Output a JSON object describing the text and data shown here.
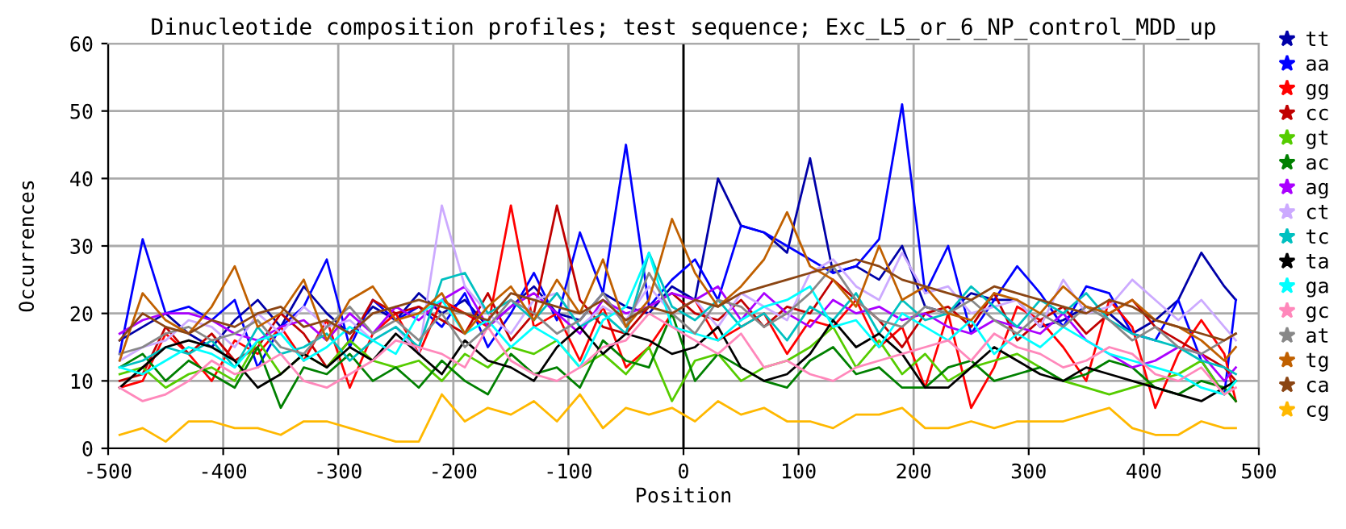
{
  "chart_data": {
    "type": "line",
    "title": "Dinucleotide composition profiles; test sequence; Exc_L5_or_6_NP_control_MDD_up",
    "xlabel": "Position",
    "ylabel": "Occurrences",
    "x": [
      -490,
      -470,
      -450,
      -430,
      -410,
      -390,
      -370,
      -350,
      -330,
      -310,
      -290,
      -270,
      -250,
      -230,
      -210,
      -190,
      -170,
      -150,
      -130,
      -110,
      -90,
      -70,
      -50,
      -30,
      -10,
      10,
      30,
      50,
      70,
      90,
      110,
      130,
      150,
      170,
      190,
      210,
      230,
      250,
      270,
      290,
      310,
      330,
      350,
      370,
      390,
      410,
      430,
      450,
      470,
      480
    ],
    "series": [
      {
        "name": "tt",
        "color": "#0000a8",
        "values": [
          16,
          18,
          20,
          17,
          15,
          19,
          22,
          18,
          24,
          20,
          17,
          21,
          19,
          23,
          20,
          22,
          18,
          21,
          24,
          20,
          19,
          23,
          21,
          20,
          24,
          22,
          40,
          33,
          32,
          29,
          43,
          26,
          27,
          25,
          30,
          21,
          20,
          23,
          22,
          22,
          18,
          19,
          21,
          20,
          17,
          19,
          22,
          29,
          24,
          22
        ]
      },
      {
        "name": "aa",
        "color": "#0000ff",
        "values": [
          14,
          31,
          20,
          21,
          19,
          22,
          12,
          18,
          21,
          28,
          15,
          22,
          19,
          21,
          18,
          23,
          15,
          20,
          26,
          19,
          32,
          23,
          45,
          21,
          25,
          28,
          22,
          33,
          32,
          30,
          28,
          26,
          27,
          31,
          51,
          23,
          30,
          17,
          22,
          27,
          23,
          18,
          24,
          23,
          17,
          16,
          22,
          13,
          8,
          22
        ]
      },
      {
        "name": "gg",
        "color": "#ff0000",
        "values": [
          9,
          10,
          17,
          14,
          10,
          16,
          14,
          18,
          13,
          19,
          9,
          17,
          20,
          14,
          22,
          20,
          18,
          36,
          18,
          20,
          13,
          21,
          12,
          15,
          20,
          22,
          16,
          18,
          20,
          14,
          19,
          18,
          22,
          15,
          18,
          9,
          20,
          6,
          12,
          21,
          19,
          15,
          10,
          22,
          18,
          6,
          14,
          19,
          14,
          7
        ]
      },
      {
        "name": "cc",
        "color": "#c00000",
        "values": [
          10,
          11,
          18,
          14,
          17,
          13,
          15,
          20,
          17,
          12,
          16,
          22,
          20,
          21,
          19,
          17,
          23,
          16,
          20,
          36,
          22,
          18,
          17,
          21,
          23,
          20,
          19,
          22,
          18,
          21,
          20,
          25,
          22,
          19,
          15,
          20,
          21,
          18,
          23,
          16,
          19,
          21,
          17,
          20,
          22,
          18,
          16,
          14,
          12,
          10
        ]
      },
      {
        "name": "gt",
        "color": "#55cc00",
        "values": [
          11,
          12,
          9,
          11,
          12,
          10,
          16,
          11,
          14,
          12,
          16,
          13,
          12,
          13,
          10,
          14,
          12,
          15,
          14,
          16,
          12,
          14,
          11,
          15,
          7,
          13,
          14,
          10,
          12,
          13,
          15,
          18,
          12,
          16,
          11,
          14,
          10,
          12,
          13,
          14,
          12,
          10,
          9,
          8,
          9,
          10,
          11,
          13,
          8,
          10
        ]
      },
      {
        "name": "ac",
        "color": "#008000",
        "values": [
          12,
          14,
          10,
          13,
          11,
          9,
          15,
          6,
          12,
          11,
          14,
          10,
          12,
          9,
          13,
          10,
          8,
          14,
          11,
          12,
          9,
          16,
          13,
          12,
          20,
          10,
          14,
          12,
          10,
          9,
          13,
          15,
          11,
          12,
          9,
          9,
          12,
          13,
          10,
          11,
          12,
          10,
          11,
          13,
          12,
          9,
          8,
          10,
          9,
          7
        ]
      },
      {
        "name": "ag",
        "color": "#aa00ff",
        "values": [
          17,
          19,
          20,
          20,
          19,
          17,
          16,
          18,
          19,
          16,
          20,
          17,
          21,
          19,
          22,
          24,
          18,
          21,
          23,
          20,
          17,
          22,
          20,
          21,
          23,
          22,
          24,
          19,
          23,
          20,
          18,
          22,
          20,
          21,
          19,
          20,
          18,
          17,
          19,
          18,
          17,
          20,
          16,
          14,
          12,
          13,
          15,
          14,
          10,
          12
        ]
      },
      {
        "name": "ct",
        "color": "#ccaaff",
        "values": [
          13,
          15,
          16,
          19,
          18,
          15,
          20,
          17,
          21,
          18,
          19,
          16,
          18,
          14,
          36,
          24,
          20,
          17,
          22,
          23,
          18,
          21,
          19,
          24,
          20,
          22,
          18,
          23,
          21,
          19,
          26,
          28,
          24,
          22,
          29,
          23,
          24,
          20,
          21,
          22,
          18,
          25,
          20,
          21,
          25,
          22,
          19,
          22,
          18,
          16
        ]
      },
      {
        "name": "tc",
        "color": "#00c0c0",
        "values": [
          12,
          13,
          15,
          14,
          16,
          12,
          18,
          14,
          15,
          17,
          13,
          16,
          18,
          15,
          25,
          26,
          20,
          22,
          19,
          23,
          18,
          20,
          17,
          29,
          21,
          19,
          22,
          18,
          20,
          16,
          21,
          19,
          23,
          17,
          22,
          19,
          20,
          24,
          21,
          18,
          22,
          20,
          23,
          19,
          17,
          16,
          15,
          13,
          12,
          11
        ]
      },
      {
        "name": "ta",
        "color": "#000000",
        "values": [
          9,
          12,
          15,
          16,
          15,
          13,
          9,
          11,
          14,
          12,
          15,
          13,
          17,
          14,
          11,
          16,
          13,
          12,
          10,
          15,
          18,
          14,
          17,
          16,
          14,
          15,
          18,
          12,
          10,
          11,
          14,
          19,
          15,
          17,
          14,
          9,
          9,
          12,
          15,
          13,
          11,
          10,
          12,
          11,
          10,
          9,
          8,
          7,
          9,
          10
        ]
      },
      {
        "name": "ga",
        "color": "#00ffff",
        "values": [
          12,
          11,
          13,
          15,
          14,
          12,
          16,
          17,
          13,
          15,
          18,
          16,
          14,
          20,
          22,
          17,
          19,
          15,
          18,
          16,
          12,
          19,
          21,
          29,
          18,
          17,
          16,
          19,
          21,
          22,
          24,
          18,
          19,
          15,
          20,
          18,
          16,
          19,
          14,
          17,
          15,
          18,
          16,
          14,
          13,
          12,
          11,
          9,
          8,
          10
        ]
      },
      {
        "name": "gc",
        "color": "#ff88bb",
        "values": [
          9,
          7,
          8,
          10,
          13,
          11,
          12,
          14,
          10,
          9,
          11,
          13,
          16,
          15,
          14,
          12,
          18,
          13,
          11,
          10,
          12,
          15,
          16,
          20,
          18,
          16,
          14,
          17,
          12,
          13,
          11,
          10,
          12,
          13,
          14,
          15,
          16,
          13,
          17,
          15,
          14,
          12,
          13,
          15,
          14,
          11,
          10,
          12,
          8,
          9
        ]
      },
      {
        "name": "at",
        "color": "#888888",
        "values": [
          14,
          15,
          17,
          18,
          16,
          17,
          19,
          15,
          14,
          18,
          21,
          17,
          19,
          16,
          20,
          15,
          18,
          22,
          20,
          17,
          19,
          23,
          18,
          26,
          20,
          17,
          22,
          21,
          18,
          20,
          23,
          27,
          22,
          19,
          18,
          21,
          20,
          22,
          19,
          17,
          20,
          18,
          21,
          19,
          16,
          18,
          15,
          14,
          16,
          17
        ]
      },
      {
        "name": "tg",
        "color": "#c06000",
        "values": [
          13,
          23,
          19,
          17,
          21,
          27,
          18,
          20,
          25,
          16,
          22,
          24,
          19,
          20,
          23,
          17,
          21,
          24,
          19,
          25,
          20,
          28,
          18,
          22,
          34,
          26,
          21,
          24,
          28,
          35,
          27,
          25,
          21,
          30,
          22,
          24,
          20,
          19,
          23,
          22,
          20,
          24,
          21,
          20,
          22,
          19,
          18,
          16,
          13,
          15
        ]
      },
      {
        "name": "ca",
        "color": "#8b4513",
        "values": [
          16,
          20,
          18,
          17,
          19,
          18,
          20,
          21,
          18,
          19,
          17,
          20,
          21,
          22,
          21,
          20,
          19,
          23,
          22,
          21,
          20,
          22,
          19,
          21,
          20,
          22,
          21,
          23,
          24,
          25,
          26,
          27,
          28,
          27,
          25,
          24,
          23,
          22,
          24,
          23,
          22,
          21,
          20,
          22,
          21,
          19,
          18,
          17,
          16,
          17
        ]
      },
      {
        "name": "cg",
        "color": "#ffb800",
        "values": [
          2,
          3,
          1,
          4,
          4,
          3,
          3,
          2,
          4,
          4,
          3,
          2,
          1,
          1,
          8,
          4,
          6,
          5,
          7,
          4,
          8,
          3,
          6,
          5,
          6,
          4,
          7,
          5,
          6,
          4,
          4,
          3,
          5,
          5,
          6,
          3,
          3,
          4,
          3,
          4,
          4,
          4,
          5,
          6,
          3,
          2,
          2,
          4,
          3,
          3
        ]
      }
    ],
    "xlim": [
      -500,
      500
    ],
    "ylim": [
      0,
      60
    ],
    "xticks": [
      -500,
      -400,
      -300,
      -200,
      -100,
      0,
      100,
      200,
      300,
      400,
      500
    ],
    "yticks": [
      0,
      10,
      20,
      30,
      40,
      50,
      60
    ],
    "grid": true,
    "legend": "right",
    "marker": "none",
    "line_style": "solid",
    "ref_lines": [
      {
        "axis": "x",
        "value": 0,
        "color": "#000000"
      }
    ]
  }
}
